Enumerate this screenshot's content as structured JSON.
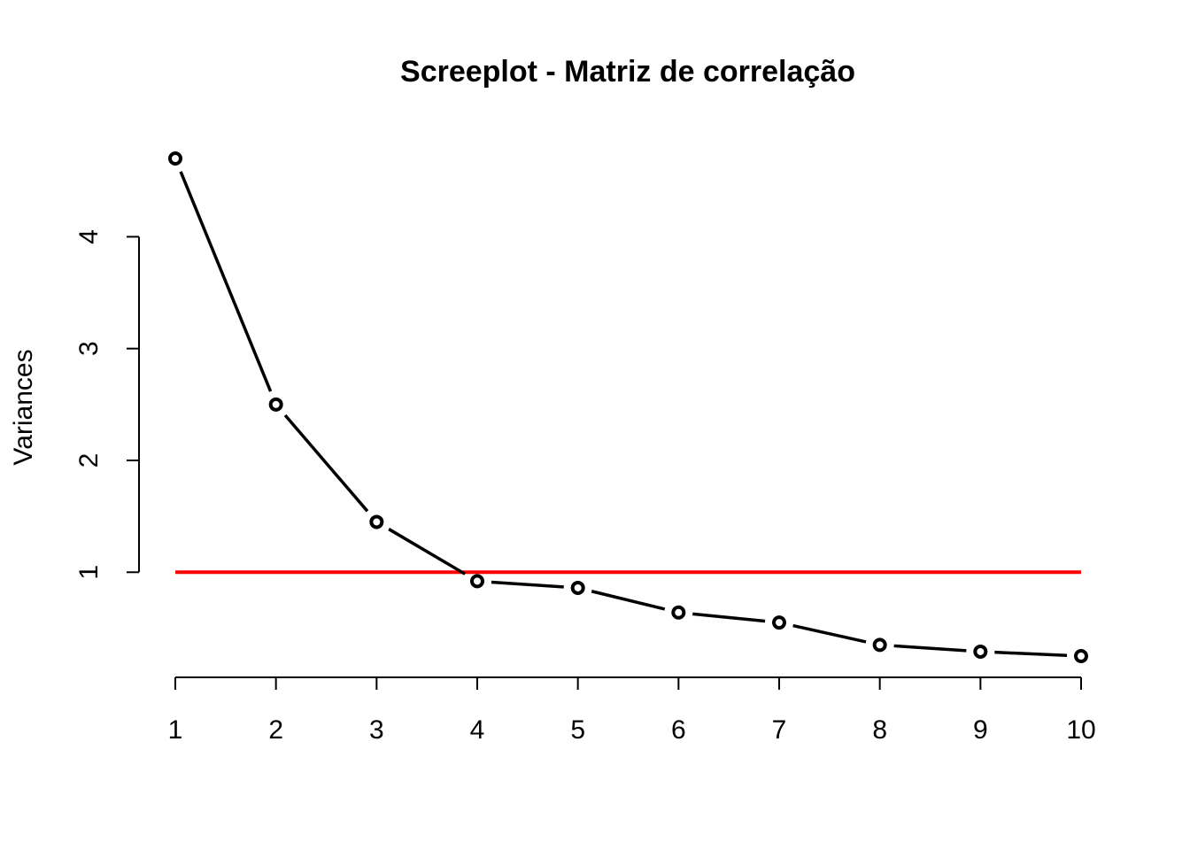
{
  "chart_data": {
    "type": "line",
    "title": "Screeplot - Matriz de correlação",
    "xlabel": "",
    "ylabel": "Variances",
    "x": [
      1,
      2,
      3,
      4,
      5,
      6,
      7,
      8,
      9,
      10
    ],
    "series": [
      {
        "values": [
          4.7,
          2.5,
          1.45,
          0.92,
          0.86,
          0.64,
          0.55,
          0.35,
          0.29,
          0.25
        ]
      }
    ],
    "reference_line": {
      "y": 1,
      "color": "#ff0000"
    },
    "x_ticks": [
      1,
      2,
      3,
      4,
      5,
      6,
      7,
      8,
      9,
      10
    ],
    "y_ticks": [
      1,
      2,
      3,
      4
    ],
    "xlim": [
      1,
      10
    ],
    "ylim": [
      0.25,
      4.7
    ],
    "grid": false,
    "line_color": "#000000",
    "marker": "open-circle"
  }
}
